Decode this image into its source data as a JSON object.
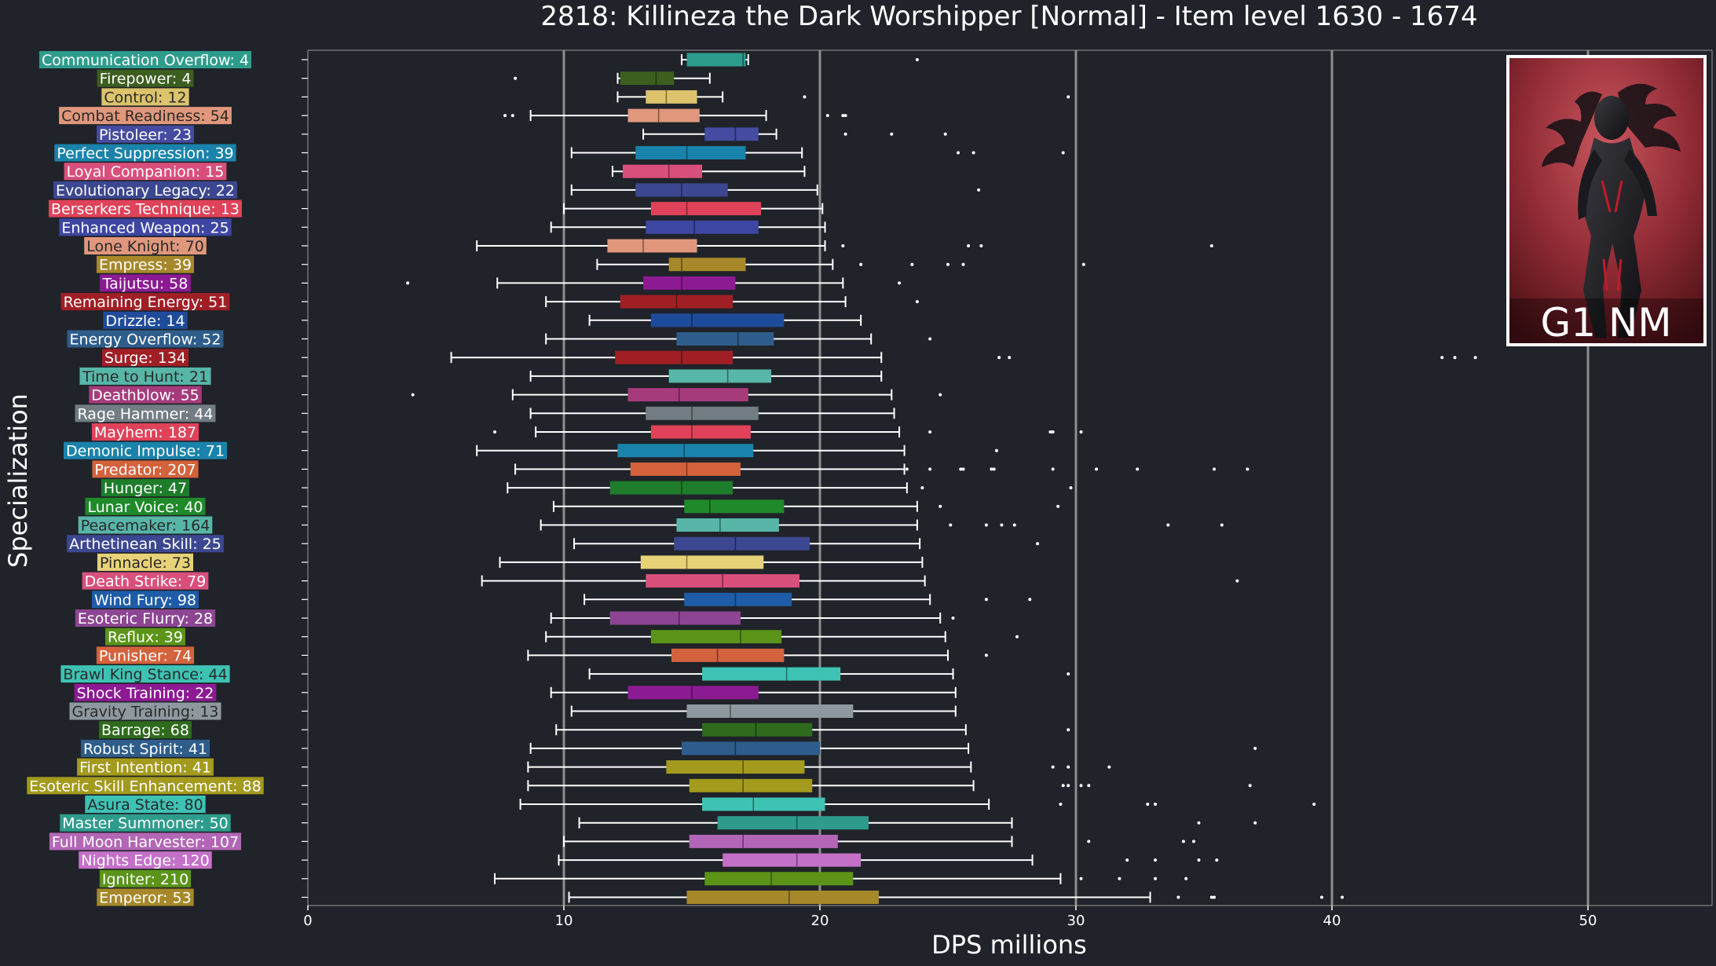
{
  "chart_data": {
    "type": "boxplot",
    "title": "2818: Killineza the Dark Worshipper [Normal] - Item level 1630 - 1674",
    "xlabel": "DPS millions",
    "ylabel": "Specialization",
    "xlim": [
      0,
      55
    ],
    "xticks": [
      0,
      10,
      20,
      30,
      40,
      50
    ],
    "grid": "vertical major lines",
    "badge": "G1 NM",
    "colors": {
      "background": "#202329",
      "whisker": "#ffffff",
      "grid": "#8e8e8e",
      "outlier": "#ffffff"
    },
    "series": [
      {
        "label": "Communication Overflow: 4",
        "color": "#2e9c8c",
        "whisker_low": 14.6,
        "q1": 14.8,
        "median": 17.0,
        "q3": 17.1,
        "whisker_high": 17.2,
        "outliers": [
          23.8
        ]
      },
      {
        "label": "Firepower: 4",
        "color": "#3c5e1f",
        "whisker_low": 12.1,
        "q1": 12.2,
        "median": 13.6,
        "q3": 14.3,
        "whisker_high": 15.7,
        "outliers": [
          8.1
        ]
      },
      {
        "label": "Control: 12",
        "color": "#dcc36c",
        "whisker_low": 12.1,
        "q1": 13.2,
        "median": 14.0,
        "q3": 15.2,
        "whisker_high": 16.2,
        "outliers": [
          19.4,
          29.7
        ]
      },
      {
        "label": "Combat Readiness: 54",
        "color": "#e0977c",
        "whisker_low": 8.7,
        "q1": 12.5,
        "median": 13.7,
        "q3": 15.3,
        "whisker_high": 17.9,
        "outliers": [
          7.7,
          8.0,
          20.3,
          20.9,
          21.0
        ]
      },
      {
        "label": "Pistoleer: 23",
        "color": "#454ba0",
        "whisker_low": 13.1,
        "q1": 15.5,
        "median": 16.7,
        "q3": 17.6,
        "whisker_high": 18.3,
        "outliers": [
          21.0,
          22.8,
          24.9
        ]
      },
      {
        "label": "Perfect Suppression: 39",
        "color": "#1a83ab",
        "whisker_low": 10.3,
        "q1": 12.8,
        "median": 14.8,
        "q3": 17.1,
        "whisker_high": 19.3,
        "outliers": [
          25.4,
          26.0,
          29.5
        ]
      },
      {
        "label": "Loyal Companion: 15",
        "color": "#d94f7c",
        "whisker_low": 11.9,
        "q1": 12.3,
        "median": 14.1,
        "q3": 15.4,
        "whisker_high": 19.4,
        "outliers": []
      },
      {
        "label": "Evolutionary Legacy: 22",
        "color": "#3c4791",
        "whisker_low": 10.3,
        "q1": 12.8,
        "median": 14.6,
        "q3": 16.4,
        "whisker_high": 19.9,
        "outliers": [
          26.2
        ]
      },
      {
        "label": "Berserkers Technique: 13",
        "color": "#df4259",
        "whisker_low": 10.0,
        "q1": 13.4,
        "median": 14.8,
        "q3": 17.7,
        "whisker_high": 20.1,
        "outliers": []
      },
      {
        "label": "Enhanced Weapon: 25",
        "color": "#3d46a2",
        "whisker_low": 9.5,
        "q1": 13.2,
        "median": 15.1,
        "q3": 17.6,
        "whisker_high": 20.2,
        "outliers": []
      },
      {
        "label": "Lone Knight: 70",
        "color": "#e0977c",
        "whisker_low": 6.6,
        "q1": 11.7,
        "median": 13.1,
        "q3": 15.2,
        "whisker_high": 20.2,
        "outliers": [
          20.9,
          25.8,
          26.3,
          35.3
        ]
      },
      {
        "label": "Empress: 39",
        "color": "#a6882a",
        "whisker_low": 11.3,
        "q1": 14.1,
        "median": 14.6,
        "q3": 17.1,
        "whisker_high": 20.5,
        "outliers": [
          21.6,
          23.6,
          25.0,
          25.6,
          30.3
        ]
      },
      {
        "label": "Taijutsu: 58",
        "color": "#8c1a93",
        "whisker_low": 7.4,
        "q1": 13.1,
        "median": 14.6,
        "q3": 16.7,
        "whisker_high": 20.9,
        "outliers": [
          3.9,
          23.1
        ]
      },
      {
        "label": "Remaining Energy: 51",
        "color": "#a01f25",
        "whisker_low": 9.3,
        "q1": 12.2,
        "median": 14.4,
        "q3": 16.6,
        "whisker_high": 21.0,
        "outliers": [
          23.8
        ]
      },
      {
        "label": "Drizzle: 14",
        "color": "#1f4b9b",
        "whisker_low": 11.0,
        "q1": 13.4,
        "median": 15.0,
        "q3": 18.6,
        "whisker_high": 21.6,
        "outliers": []
      },
      {
        "label": "Energy Overflow: 52",
        "color": "#2e5d8b",
        "whisker_low": 9.3,
        "q1": 14.4,
        "median": 16.8,
        "q3": 18.2,
        "whisker_high": 22.0,
        "outliers": [
          24.3
        ]
      },
      {
        "label": "Surge: 134",
        "color": "#a01f25",
        "whisker_low": 5.6,
        "q1": 12.0,
        "median": 14.6,
        "q3": 16.6,
        "whisker_high": 22.4,
        "outliers": [
          27.0,
          27.4,
          44.3,
          44.8,
          45.6
        ]
      },
      {
        "label": "Time to Hunt: 21",
        "color": "#57b6a8",
        "whisker_low": 8.7,
        "q1": 14.1,
        "median": 16.4,
        "q3": 18.1,
        "whisker_high": 22.4,
        "outliers": []
      },
      {
        "label": "Deathblow: 55",
        "color": "#a63b7c",
        "whisker_low": 8.0,
        "q1": 12.5,
        "median": 14.5,
        "q3": 17.2,
        "whisker_high": 22.8,
        "outliers": [
          4.1,
          24.7
        ]
      },
      {
        "label": "Rage Hammer: 44",
        "color": "#727d83",
        "whisker_low": 8.7,
        "q1": 13.2,
        "median": 15.0,
        "q3": 17.6,
        "whisker_high": 22.9,
        "outliers": []
      },
      {
        "label": "Mayhem: 187",
        "color": "#df4259",
        "whisker_low": 8.9,
        "q1": 13.4,
        "median": 15.0,
        "q3": 17.3,
        "whisker_high": 23.1,
        "outliers": [
          7.3,
          24.3,
          29.0,
          29.1,
          30.2
        ]
      },
      {
        "label": "Demonic Impulse: 71",
        "color": "#1a83ab",
        "whisker_low": 6.6,
        "q1": 12.1,
        "median": 14.7,
        "q3": 17.4,
        "whisker_high": 23.3,
        "outliers": [
          26.9
        ]
      },
      {
        "label": "Predator: 207",
        "color": "#d4623c",
        "whisker_low": 8.1,
        "q1": 12.6,
        "median": 14.8,
        "q3": 16.9,
        "whisker_high": 23.3,
        "outliers": [
          23.4,
          24.3,
          25.5,
          25.6,
          26.7,
          26.8,
          29.1,
          30.8,
          32.4,
          35.4,
          36.7
        ]
      },
      {
        "label": "Hunger: 47",
        "color": "#1d7d2a",
        "whisker_low": 7.8,
        "q1": 11.8,
        "median": 14.6,
        "q3": 16.6,
        "whisker_high": 23.4,
        "outliers": [
          24.0,
          29.8
        ]
      },
      {
        "label": "Lunar Voice: 40",
        "color": "#1f8a2a",
        "whisker_low": 9.6,
        "q1": 14.7,
        "median": 15.7,
        "q3": 18.6,
        "whisker_high": 23.8,
        "outliers": [
          24.7,
          29.3
        ]
      },
      {
        "label": "Peacemaker: 164",
        "color": "#57b6a8",
        "whisker_low": 9.1,
        "q1": 14.4,
        "median": 16.1,
        "q3": 18.4,
        "whisker_high": 23.8,
        "outliers": [
          25.1,
          26.5,
          27.1,
          27.6,
          33.6,
          35.7
        ]
      },
      {
        "label": "Arthetinean Skill: 25",
        "color": "#3c4791",
        "whisker_low": 10.4,
        "q1": 14.3,
        "median": 16.7,
        "q3": 19.6,
        "whisker_high": 23.9,
        "outliers": [
          28.5
        ]
      },
      {
        "label": "Pinnacle: 73",
        "color": "#e7d278",
        "whisker_low": 7.5,
        "q1": 13.0,
        "median": 14.8,
        "q3": 17.8,
        "whisker_high": 24.0,
        "outliers": []
      },
      {
        "label": "Death Strike: 79",
        "color": "#d94f7c",
        "whisker_low": 6.8,
        "q1": 13.2,
        "median": 16.2,
        "q3": 19.2,
        "whisker_high": 24.1,
        "outliers": [
          36.3
        ]
      },
      {
        "label": "Wind Fury: 98",
        "color": "#1f5ca8",
        "whisker_low": 10.8,
        "q1": 14.7,
        "median": 16.7,
        "q3": 18.9,
        "whisker_high": 24.3,
        "outliers": [
          26.5,
          28.2
        ]
      },
      {
        "label": "Esoteric Flurry: 28",
        "color": "#8d4593",
        "whisker_low": 9.5,
        "q1": 11.8,
        "median": 14.5,
        "q3": 16.9,
        "whisker_high": 24.7,
        "outliers": [
          25.2
        ]
      },
      {
        "label": "Reflux: 39",
        "color": "#5b9418",
        "whisker_low": 9.3,
        "q1": 13.4,
        "median": 16.9,
        "q3": 18.5,
        "whisker_high": 24.9,
        "outliers": [
          27.7
        ]
      },
      {
        "label": "Punisher: 74",
        "color": "#d4623c",
        "whisker_low": 8.6,
        "q1": 14.2,
        "median": 16.0,
        "q3": 18.6,
        "whisker_high": 25.0,
        "outliers": [
          26.5
        ]
      },
      {
        "label": "Brawl King Stance: 44",
        "color": "#3ec2b4",
        "whisker_low": 11.0,
        "q1": 15.4,
        "median": 18.7,
        "q3": 20.8,
        "whisker_high": 25.2,
        "outliers": [
          29.7
        ]
      },
      {
        "label": "Shock Training: 22",
        "color": "#8c1a93",
        "whisker_low": 9.5,
        "q1": 12.5,
        "median": 15.0,
        "q3": 17.6,
        "whisker_high": 25.3,
        "outliers": []
      },
      {
        "label": "Gravity Training: 13",
        "color": "#8e999f",
        "whisker_low": 10.3,
        "q1": 14.8,
        "median": 16.5,
        "q3": 21.3,
        "whisker_high": 25.3,
        "outliers": []
      },
      {
        "label": "Barrage: 68",
        "color": "#2e6b1c",
        "whisker_low": 9.7,
        "q1": 15.4,
        "median": 17.5,
        "q3": 19.7,
        "whisker_high": 25.7,
        "outliers": [
          29.7
        ]
      },
      {
        "label": "Robust Spirit: 41",
        "color": "#2e5d8b",
        "whisker_low": 8.7,
        "q1": 14.6,
        "median": 16.7,
        "q3": 20.0,
        "whisker_high": 25.8,
        "outliers": [
          37.0
        ]
      },
      {
        "label": "First Intention: 41",
        "color": "#a39a1e",
        "whisker_low": 8.6,
        "q1": 14.0,
        "median": 17.0,
        "q3": 19.4,
        "whisker_high": 25.9,
        "outliers": [
          29.1,
          29.7,
          31.3
        ]
      },
      {
        "label": "Esoteric Skill Enhancement: 88",
        "color": "#a39a1e",
        "whisker_low": 8.6,
        "q1": 14.9,
        "median": 17.0,
        "q3": 19.7,
        "whisker_high": 26.0,
        "outliers": [
          29.5,
          29.7,
          30.2,
          30.5,
          36.8
        ]
      },
      {
        "label": "Asura State: 80",
        "color": "#3ec2b4",
        "whisker_low": 8.3,
        "q1": 15.4,
        "median": 17.4,
        "q3": 20.2,
        "whisker_high": 26.6,
        "outliers": [
          29.4,
          32.8,
          33.1,
          39.3
        ]
      },
      {
        "label": "Master Summoner: 50",
        "color": "#2e9c8c",
        "whisker_low": 10.6,
        "q1": 16.0,
        "median": 19.1,
        "q3": 21.9,
        "whisker_high": 27.5,
        "outliers": [
          34.8,
          37.0
        ]
      },
      {
        "label": "Full Moon Harvester: 107",
        "color": "#b366b6",
        "whisker_low": 10.0,
        "q1": 14.9,
        "median": 17.0,
        "q3": 20.7,
        "whisker_high": 27.5,
        "outliers": [
          30.5,
          34.2,
          34.6
        ]
      },
      {
        "label": "Nights Edge: 120",
        "color": "#c470c8",
        "whisker_low": 9.8,
        "q1": 16.2,
        "median": 19.1,
        "q3": 21.6,
        "whisker_high": 28.3,
        "outliers": [
          32.0,
          33.1,
          34.8,
          35.5
        ]
      },
      {
        "label": "Igniter: 210",
        "color": "#5b9418",
        "whisker_low": 7.3,
        "q1": 15.5,
        "median": 18.1,
        "q3": 21.3,
        "whisker_high": 29.4,
        "outliers": [
          30.2,
          31.7,
          33.1,
          34.3
        ]
      },
      {
        "label": "Emperor: 53",
        "color": "#a6882a",
        "whisker_low": 10.2,
        "q1": 14.8,
        "median": 18.8,
        "q3": 22.3,
        "whisker_high": 32.9,
        "outliers": [
          34.0,
          35.3,
          35.4,
          39.6,
          40.4
        ]
      }
    ]
  }
}
